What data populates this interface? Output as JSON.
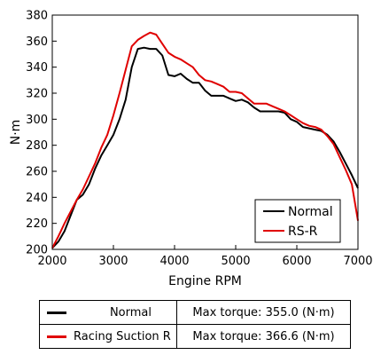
{
  "chart_data": {
    "type": "line",
    "xlabel": "Engine RPM",
    "ylabel": "N·m",
    "xlim": [
      2000,
      7000
    ],
    "ylim": [
      200,
      380
    ],
    "xticks": [
      2000,
      3000,
      4000,
      5000,
      6000,
      7000
    ],
    "yticks": [
      200,
      220,
      240,
      260,
      280,
      300,
      320,
      340,
      360,
      380
    ],
    "grid": false,
    "legend_placement": "bottom-right",
    "series": [
      {
        "name": "Normal",
        "color": "#000000",
        "points": [
          [
            2000,
            201
          ],
          [
            2100,
            206
          ],
          [
            2200,
            214
          ],
          [
            2300,
            226
          ],
          [
            2400,
            238
          ],
          [
            2500,
            242
          ],
          [
            2600,
            250
          ],
          [
            2700,
            262
          ],
          [
            2800,
            272
          ],
          [
            2900,
            280
          ],
          [
            3000,
            288
          ],
          [
            3100,
            300
          ],
          [
            3200,
            315
          ],
          [
            3300,
            340
          ],
          [
            3400,
            354
          ],
          [
            3500,
            355
          ],
          [
            3600,
            354
          ],
          [
            3700,
            354
          ],
          [
            3800,
            349
          ],
          [
            3900,
            334
          ],
          [
            4000,
            333
          ],
          [
            4100,
            335
          ],
          [
            4200,
            331
          ],
          [
            4300,
            328
          ],
          [
            4400,
            328
          ],
          [
            4500,
            322
          ],
          [
            4600,
            318
          ],
          [
            4700,
            318
          ],
          [
            4800,
            318
          ],
          [
            4900,
            316
          ],
          [
            5000,
            314
          ],
          [
            5100,
            315
          ],
          [
            5200,
            313
          ],
          [
            5300,
            309
          ],
          [
            5400,
            306
          ],
          [
            5500,
            306
          ],
          [
            5600,
            306
          ],
          [
            5700,
            306
          ],
          [
            5800,
            305
          ],
          [
            5900,
            300
          ],
          [
            6000,
            298
          ],
          [
            6100,
            294
          ],
          [
            6200,
            293
          ],
          [
            6300,
            292
          ],
          [
            6400,
            291
          ],
          [
            6500,
            288
          ],
          [
            6600,
            283
          ],
          [
            6700,
            275
          ],
          [
            6800,
            266
          ],
          [
            6900,
            257
          ],
          [
            7000,
            247
          ]
        ]
      },
      {
        "name": "RS-R",
        "color": "#e00000",
        "points": [
          [
            2000,
            201
          ],
          [
            2100,
            210
          ],
          [
            2200,
            220
          ],
          [
            2300,
            229
          ],
          [
            2400,
            238
          ],
          [
            2500,
            246
          ],
          [
            2600,
            256
          ],
          [
            2700,
            266
          ],
          [
            2800,
            278
          ],
          [
            2900,
            288
          ],
          [
            3000,
            303
          ],
          [
            3100,
            320
          ],
          [
            3200,
            338
          ],
          [
            3300,
            356
          ],
          [
            3400,
            361
          ],
          [
            3500,
            364
          ],
          [
            3600,
            366.6
          ],
          [
            3700,
            365
          ],
          [
            3800,
            358
          ],
          [
            3900,
            351
          ],
          [
            4000,
            348
          ],
          [
            4100,
            346
          ],
          [
            4200,
            343
          ],
          [
            4300,
            340
          ],
          [
            4400,
            334
          ],
          [
            4500,
            330
          ],
          [
            4600,
            329
          ],
          [
            4700,
            327
          ],
          [
            4800,
            325
          ],
          [
            4900,
            321
          ],
          [
            5000,
            321
          ],
          [
            5100,
            320
          ],
          [
            5200,
            316
          ],
          [
            5300,
            312
          ],
          [
            5400,
            312
          ],
          [
            5500,
            312
          ],
          [
            5600,
            310
          ],
          [
            5700,
            308
          ],
          [
            5800,
            306
          ],
          [
            5900,
            303
          ],
          [
            6000,
            300
          ],
          [
            6100,
            297
          ],
          [
            6200,
            295
          ],
          [
            6300,
            294
          ],
          [
            6400,
            292
          ],
          [
            6500,
            287
          ],
          [
            6600,
            281
          ],
          [
            6700,
            271
          ],
          [
            6800,
            261
          ],
          [
            6900,
            250
          ],
          [
            7000,
            222
          ]
        ]
      }
    ]
  },
  "legend": [
    {
      "label": "Normal",
      "color": "#000000"
    },
    {
      "label": "RS-R",
      "color": "#e00000"
    }
  ],
  "summary_table": [
    {
      "label": "Normal",
      "color": "#000000",
      "value": "Max torque: 355.0 (N·m)"
    },
    {
      "label": "Racing Suction R",
      "color": "#e00000",
      "value": "Max torque: 366.6 (N·m)"
    }
  ]
}
